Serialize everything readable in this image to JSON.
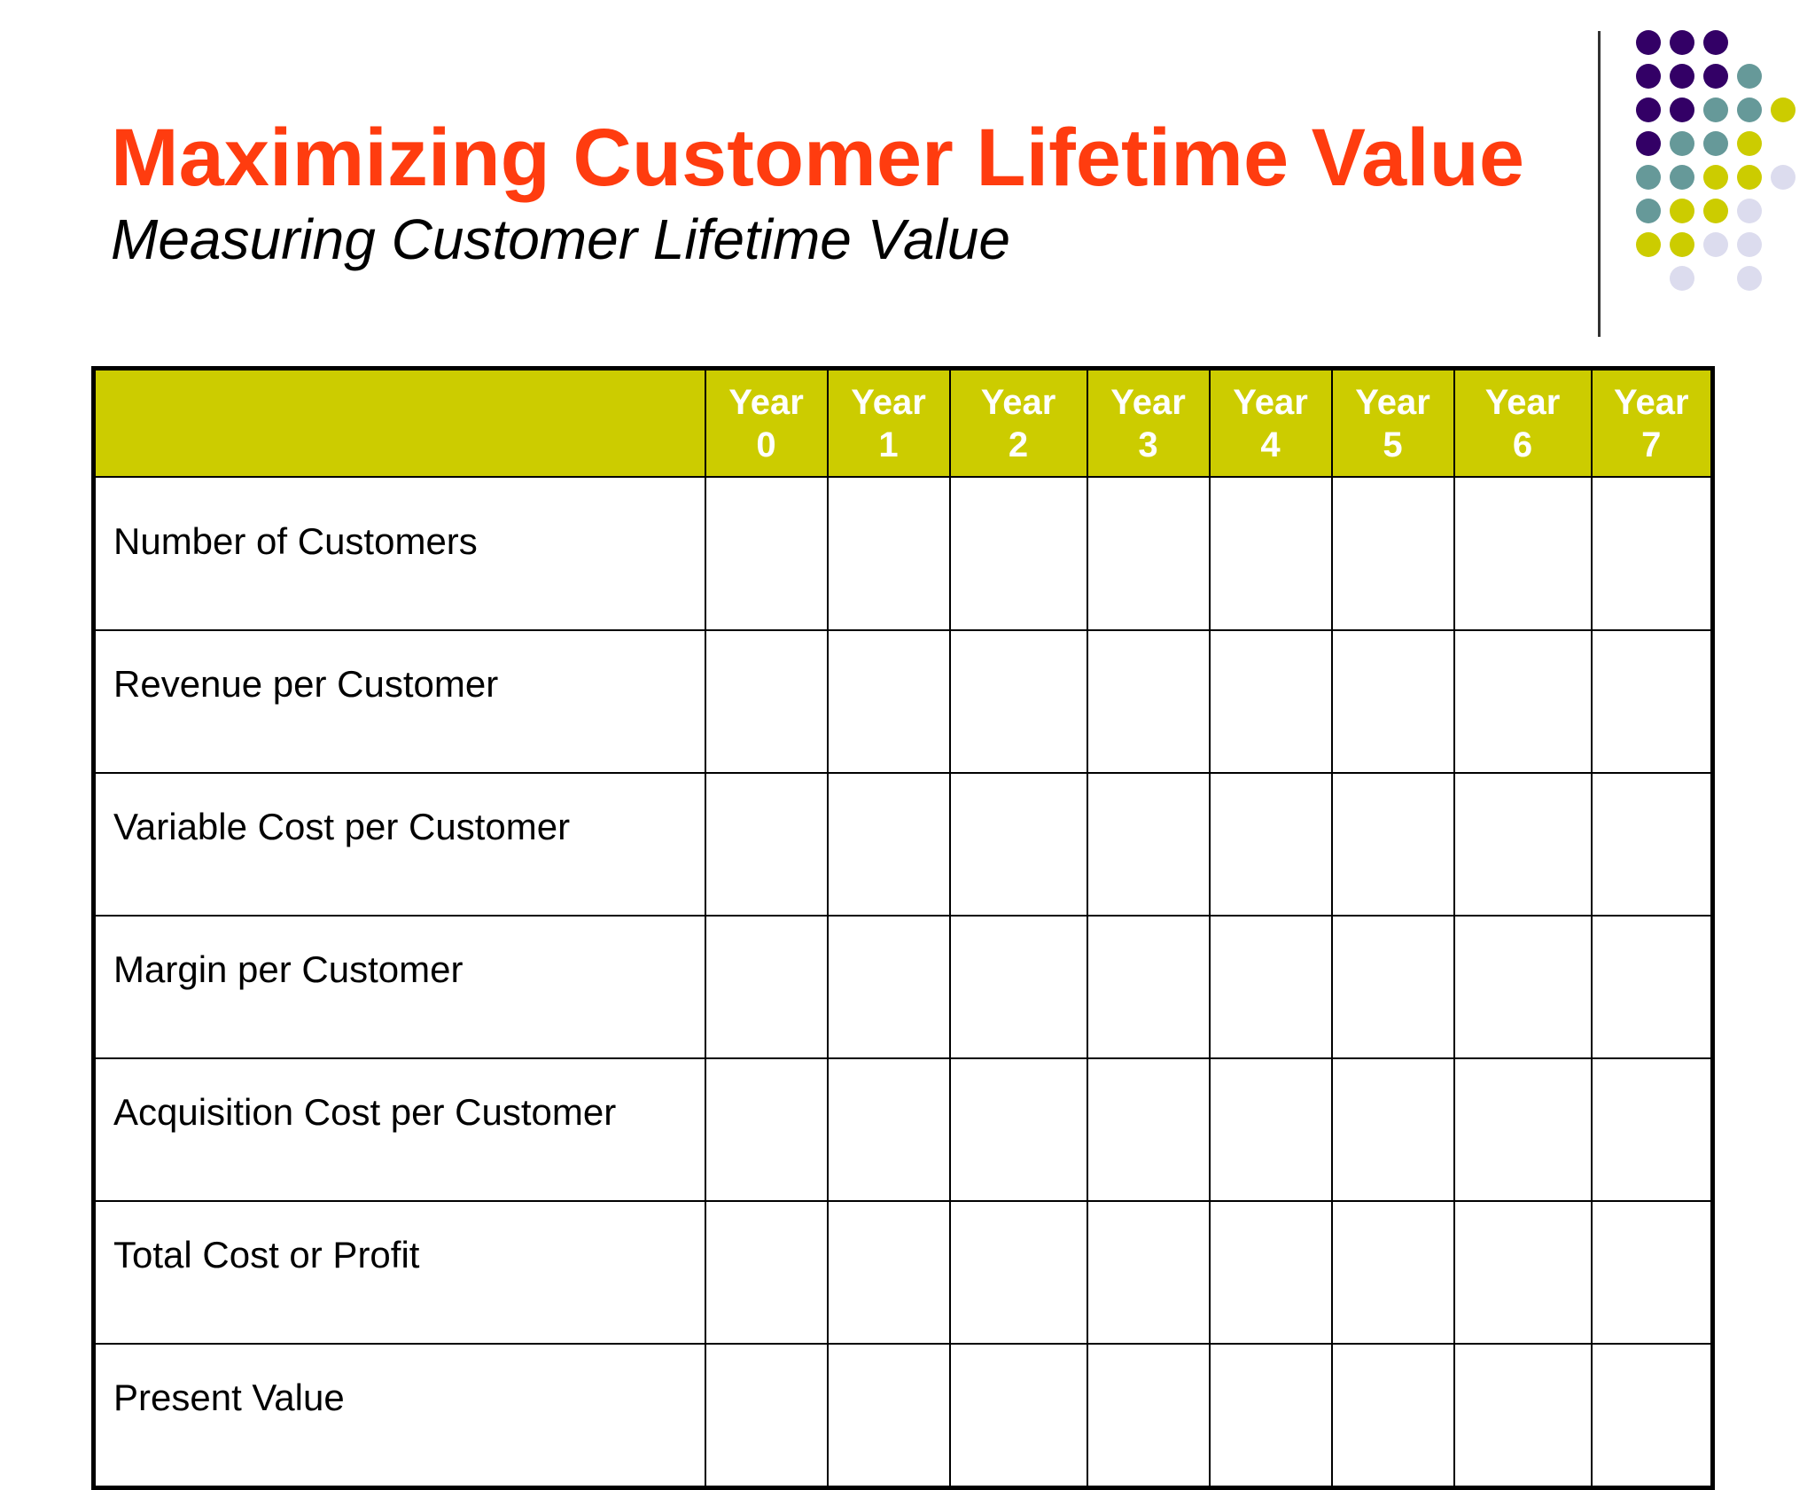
{
  "slide": {
    "title": "Maximizing Customer Lifetime Value",
    "subtitle": "Measuring Customer Lifetime Value"
  },
  "table": {
    "header_corner": "",
    "columns": [
      {
        "line1": "Year",
        "line2": "0"
      },
      {
        "line1": "Year",
        "line2": "1"
      },
      {
        "line1": "Year",
        "line2": "2"
      },
      {
        "line1": "Year",
        "line2": "3"
      },
      {
        "line1": "Year",
        "line2": "4"
      },
      {
        "line1": "Year",
        "line2": "5"
      },
      {
        "line1": "Year",
        "line2": "6"
      },
      {
        "line1": "Year",
        "line2": "7"
      }
    ],
    "rows": [
      "Number of Customers",
      "Revenue per Customer",
      "Variable Cost per Customer",
      "Margin per Customer",
      "Acquisition Cost per Customer",
      "Total Cost or Profit",
      "Present Value"
    ]
  },
  "colors": {
    "title": "#ff3c0f",
    "header_fill": "#cccc00",
    "header_text": "#ffffff",
    "dot_purple": "#330066",
    "dot_teal": "#669999",
    "dot_olive": "#cccc00",
    "dot_lavender": "#dcdcee"
  }
}
